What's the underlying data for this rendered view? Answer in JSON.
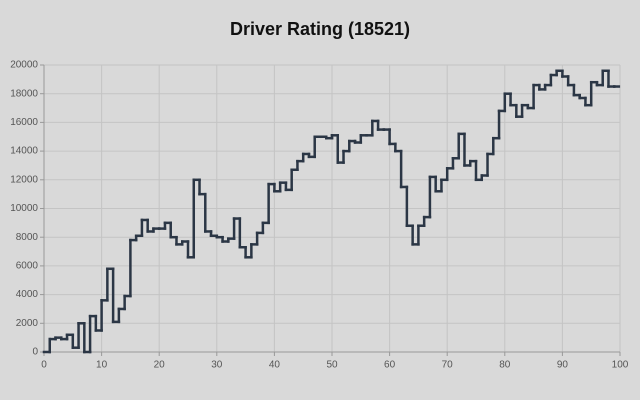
{
  "chart_data": {
    "type": "step",
    "title": "Driver Rating (18521)",
    "x": [
      0,
      1,
      2,
      3,
      4,
      5,
      6,
      7,
      8,
      9,
      10,
      11,
      12,
      13,
      14,
      15,
      16,
      17,
      18,
      19,
      20,
      21,
      22,
      23,
      24,
      25,
      26,
      27,
      28,
      29,
      30,
      31,
      32,
      33,
      34,
      35,
      36,
      37,
      38,
      39,
      40,
      41,
      42,
      43,
      44,
      45,
      46,
      47,
      48,
      49,
      50,
      51,
      52,
      53,
      54,
      55,
      56,
      57,
      58,
      59,
      60,
      61,
      62,
      63,
      64,
      65,
      66,
      67,
      68,
      69,
      70,
      71,
      72,
      73,
      74,
      75,
      76,
      77,
      78,
      79,
      80,
      81,
      82,
      83,
      84,
      85,
      86,
      87,
      88,
      89,
      90,
      91,
      92,
      93,
      94,
      95,
      96,
      97,
      98,
      99
    ],
    "values": [
      0,
      900,
      1000,
      900,
      1200,
      300,
      2000,
      0,
      2500,
      1500,
      3600,
      5800,
      2100,
      3000,
      3900,
      7800,
      8100,
      9200,
      8400,
      8600,
      8600,
      9000,
      8000,
      7500,
      7700,
      6600,
      12000,
      11000,
      8400,
      8100,
      8000,
      7700,
      7900,
      9300,
      7300,
      6600,
      7500,
      8300,
      9000,
      11700,
      11200,
      11800,
      11300,
      12700,
      13300,
      13800,
      13600,
      15000,
      15000,
      14900,
      15100,
      13200,
      14000,
      14700,
      14600,
      15100,
      15100,
      16100,
      15500,
      15500,
      14500,
      14000,
      11500,
      8800,
      7500,
      8800,
      9400,
      12200,
      11200,
      12000,
      12800,
      13500,
      15200,
      13000,
      13300,
      12000,
      12300,
      13800,
      14900,
      16800,
      18000,
      17200,
      16400,
      17200,
      17000,
      18600,
      18300,
      18600,
      19300,
      19600,
      19200,
      18600,
      17900,
      17700,
      17200,
      18800,
      18600,
      19600,
      18500,
      18500
    ],
    "color": "#2b3645",
    "xlim": [
      0,
      100
    ],
    "xticks": [
      0,
      10,
      20,
      30,
      40,
      50,
      60,
      70,
      80,
      90,
      100
    ],
    "ylim": [
      0,
      20000
    ],
    "yticks": [
      0,
      2000,
      4000,
      6000,
      8000,
      10000,
      12000,
      14000,
      16000,
      18000,
      20000
    ],
    "grid": true
  }
}
